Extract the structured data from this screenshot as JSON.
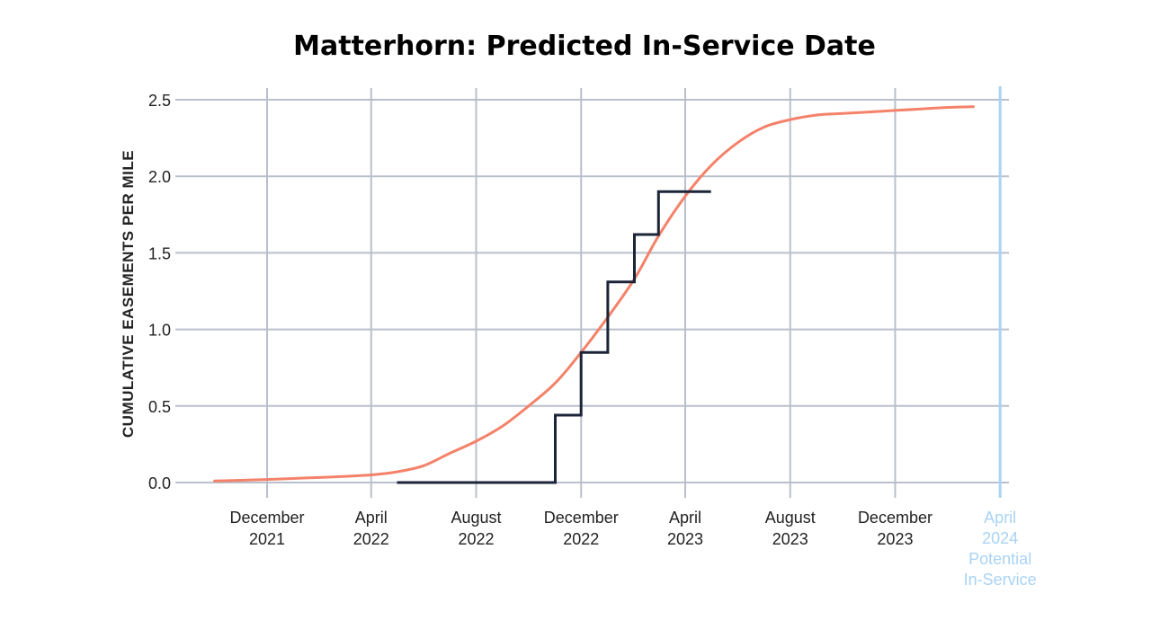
{
  "chart_data": {
    "type": "line",
    "title": "Matterhorn: Predicted In-Service Date",
    "ylabel": "CUMULATIVE EASEMENTS PER MILE",
    "xlabel": "",
    "ylim": [
      0,
      2.5
    ],
    "xlim": [
      "2021-09-01",
      "2024-05-01"
    ],
    "yticks": [
      "0.0",
      "0.5",
      "1.0",
      "1.5",
      "2.0",
      "2.5"
    ],
    "xticks": [
      {
        "date": "2021-12-01",
        "line1": "December",
        "line2": "2021"
      },
      {
        "date": "2022-04-01",
        "line1": "April",
        "line2": "2022"
      },
      {
        "date": "2022-08-01",
        "line1": "August",
        "line2": "2022"
      },
      {
        "date": "2022-12-01",
        "line1": "December",
        "line2": "2022"
      },
      {
        "date": "2023-04-01",
        "line1": "April",
        "line2": "2023"
      },
      {
        "date": "2023-08-01",
        "line1": "August",
        "line2": "2023"
      },
      {
        "date": "2023-12-01",
        "line1": "December",
        "line2": "2023"
      }
    ],
    "marker": {
      "date": "2024-04-01",
      "line1": "April",
      "line2": "2024",
      "line3": "Potential",
      "line4": "In-Service",
      "color": "#a9d3f5"
    },
    "grid": true,
    "series": [
      {
        "style": "curve",
        "color": "#f4826a",
        "x": [
          "2021-10-01",
          "2021-12-01",
          "2022-01-15",
          "2022-03-01",
          "2022-04-01",
          "2022-05-01",
          "2022-06-01",
          "2022-07-01",
          "2022-08-01",
          "2022-09-01",
          "2022-10-01",
          "2022-11-01",
          "2022-12-01",
          "2023-01-01",
          "2023-02-01",
          "2023-03-01",
          "2023-04-01",
          "2023-05-01",
          "2023-06-01",
          "2023-07-01",
          "2023-08-01",
          "2023-09-01",
          "2023-10-01",
          "2023-11-01",
          "2023-12-01",
          "2024-01-01",
          "2024-02-01",
          "2024-03-01"
        ],
        "y": [
          0.01,
          0.02,
          0.03,
          0.04,
          0.05,
          0.07,
          0.11,
          0.19,
          0.27,
          0.37,
          0.5,
          0.65,
          0.85,
          1.08,
          1.33,
          1.61,
          1.87,
          2.07,
          2.22,
          2.32,
          2.37,
          2.4,
          2.41,
          2.42,
          2.43,
          2.44,
          2.45,
          2.455
        ]
      },
      {
        "style": "step",
        "color": "#1c2438",
        "x": [
          "2022-05-01",
          "2022-11-01",
          "2022-12-01",
          "2023-01-01",
          "2023-02-01",
          "2023-03-01",
          "2023-05-01"
        ],
        "y": [
          0.0,
          0.44,
          0.85,
          1.31,
          1.62,
          1.9,
          1.9
        ]
      }
    ]
  }
}
